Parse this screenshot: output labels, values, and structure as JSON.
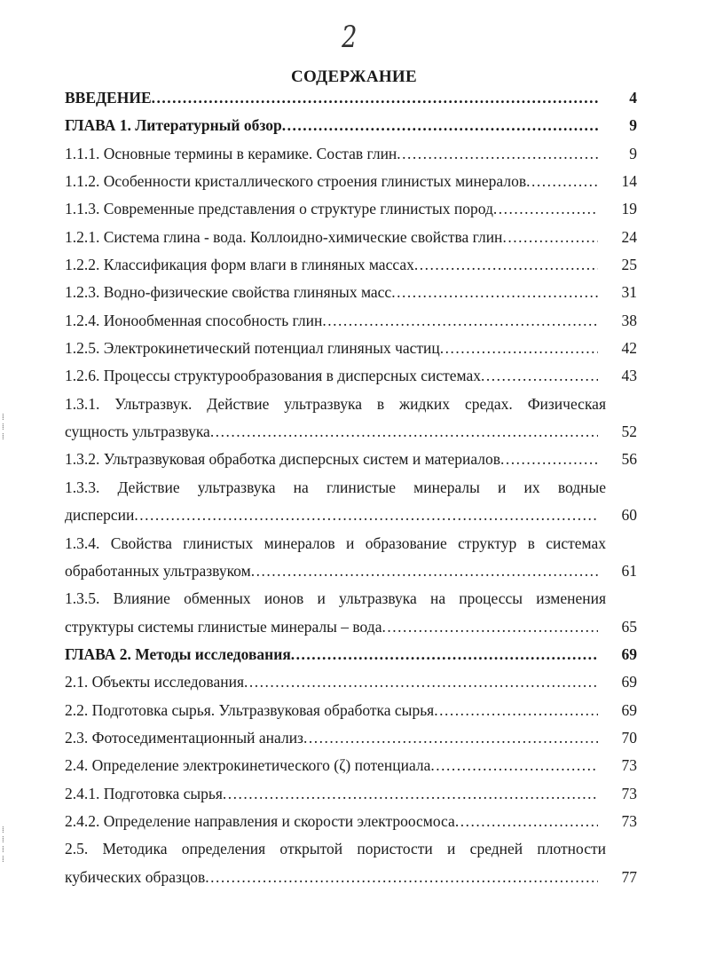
{
  "handwritten_page_number": "2",
  "title": "СОДЕРЖАНИЕ",
  "entries": [
    {
      "lines": [
        "ВВЕДЕНИЕ"
      ],
      "page": "4",
      "bold": true
    },
    {
      "lines": [
        "ГЛАВА 1. Литературный обзор"
      ],
      "page": "9",
      "bold": true
    },
    {
      "lines": [
        "1.1.1. Основные термины в керамике. Состав глин"
      ],
      "page": "9"
    },
    {
      "lines": [
        "1.1.2. Особенности кристаллического строения глинистых минералов"
      ],
      "page": "14"
    },
    {
      "lines": [
        "1.1.3. Современные представления о структуре глинистых пород"
      ],
      "page": "19"
    },
    {
      "lines": [
        "1.2.1. Система глина - вода. Коллоидно-химические свойства глин"
      ],
      "page": "24"
    },
    {
      "lines": [
        "1.2.2. Классификация форм влаги в глиняных массах"
      ],
      "page": "25"
    },
    {
      "lines": [
        "1.2.3. Водно-физические свойства глиняных масс"
      ],
      "page": "31"
    },
    {
      "lines": [
        "1.2.4. Ионообменная  способность глин"
      ],
      "page": "38"
    },
    {
      "lines": [
        "1.2.5. Электрокинетический потенциал глиняных частиц"
      ],
      "page": "42"
    },
    {
      "lines": [
        "1.2.6. Процессы структурообразования в дисперсных системах"
      ],
      "page": "43"
    },
    {
      "lines": [
        "1.3.1. Ультразвук. Действие ультразвука в жидких средах. Физическая",
        "сущность ультразвука"
      ],
      "page": "52"
    },
    {
      "lines": [
        "1.3.2. Ультразвуковая обработка дисперсных систем и материалов"
      ],
      "page": "56"
    },
    {
      "lines": [
        "1.3.3. Действие ультразвука на глинистые минералы и их водные",
        "дисперсии"
      ],
      "page": "60"
    },
    {
      "lines": [
        "1.3.4. Свойства глинистых минералов и образование структур в системах",
        "обработанных ультразвуком"
      ],
      "page": "61"
    },
    {
      "lines": [
        "1.3.5. Влияние обменных ионов и ультразвука на процессы изменения",
        "структуры системы глинистые минералы – вода"
      ],
      "page": "65"
    },
    {
      "lines": [
        "ГЛАВА 2.  Методы исследования"
      ],
      "page": "69",
      "bold": true
    },
    {
      "lines": [
        "2.1. Объекты исследования"
      ],
      "page": "69"
    },
    {
      "lines": [
        "2.2. Подготовка сырья. Ультразвуковая обработка сырья"
      ],
      "page": "69"
    },
    {
      "lines": [
        "2.3. Фотоседиментационный анализ"
      ],
      "page": "70"
    },
    {
      "lines": [
        "2.4. Определение электрокинетического (ζ) потенциала"
      ],
      "page": "73"
    },
    {
      "lines": [
        "2.4.1. Подготовка сырья"
      ],
      "page": "73"
    },
    {
      "lines": [
        "2.4.2. Определение направления и скорости электроосмоса"
      ],
      "page": "73"
    },
    {
      "lines": [
        "2.5. Методика определения открытой пористости и средней плотности",
        "кубических образцов"
      ],
      "page": "77"
    }
  ]
}
